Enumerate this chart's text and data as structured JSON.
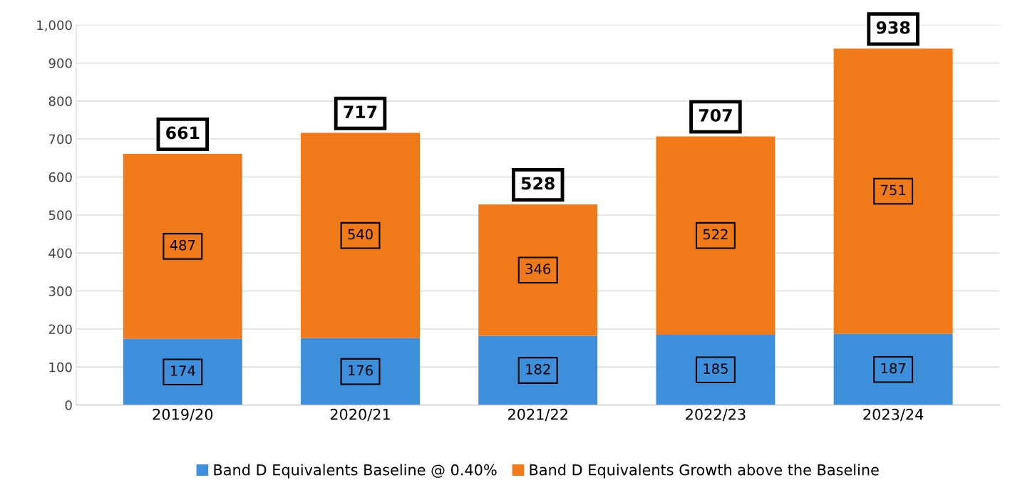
{
  "chart_data": {
    "type": "bar",
    "stacked": true,
    "categories": [
      "2019/20",
      "2020/21",
      "2021/22",
      "2022/23",
      "2023/24"
    ],
    "series": [
      {
        "name": "Band D Equivalents Baseline @ 0.40%",
        "color": "#3d8fdc",
        "values": [
          174,
          176,
          182,
          185,
          187
        ]
      },
      {
        "name": "Band D Equivalents Growth above the Baseline",
        "color": "#f07a1a",
        "values": [
          487,
          540,
          346,
          522,
          751
        ]
      }
    ],
    "totals": [
      "661",
      "717",
      "528",
      "707",
      "938"
    ],
    "data_labels": true,
    "ylim": [
      0,
      1000
    ],
    "yticks": [
      {
        "value": 0,
        "label": "0"
      },
      {
        "value": 100,
        "label": "100"
      },
      {
        "value": 200,
        "label": "200"
      },
      {
        "value": 300,
        "label": "300"
      },
      {
        "value": 400,
        "label": "400"
      },
      {
        "value": 500,
        "label": "500"
      },
      {
        "value": 600,
        "label": "600"
      },
      {
        "value": 700,
        "label": "700"
      },
      {
        "value": 800,
        "label": "800"
      },
      {
        "value": 900,
        "label": "900"
      },
      {
        "value": 1000,
        "label": "1,000"
      }
    ],
    "grid": "y",
    "legend": "bottom"
  }
}
